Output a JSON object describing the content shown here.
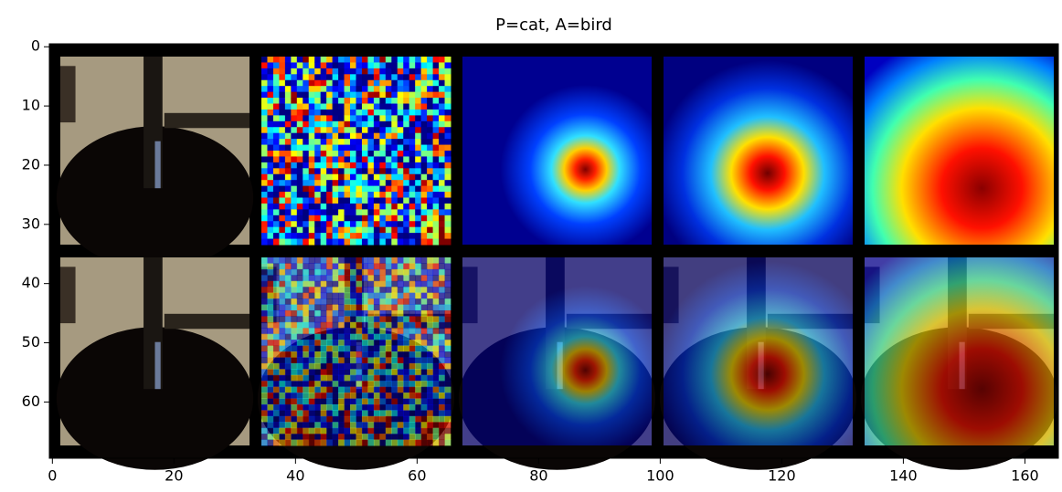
{
  "chart_data": {
    "type": "image",
    "title": "P=cat, A=bird",
    "xlim": [
      -0.5,
      165.5
    ],
    "ylim": [
      69.5,
      -0.5
    ],
    "xticks": [
      0,
      20,
      40,
      60,
      80,
      100,
      120,
      140,
      160
    ],
    "yticks": [
      0,
      10,
      20,
      30,
      40,
      50,
      60
    ]
  }
}
